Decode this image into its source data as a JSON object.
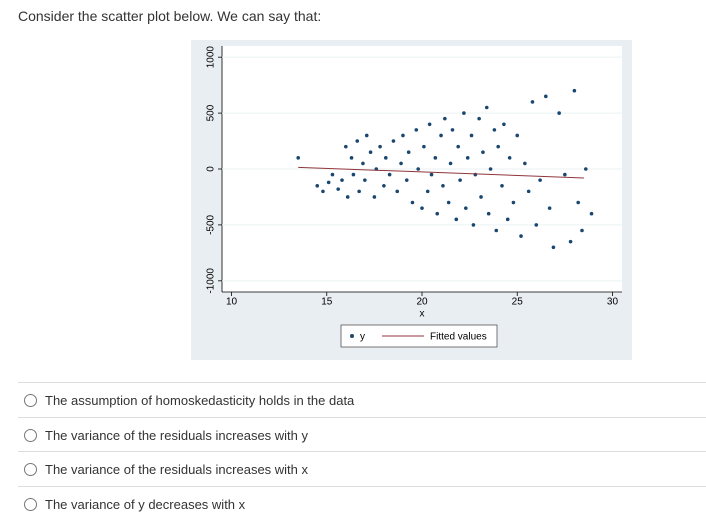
{
  "question": "Consider the scatter plot below. We can say that:",
  "options": [
    "The assumption of homoskedasticity holds in the data",
    "The variance of the residuals increases with y",
    "The variance of the residuals increases with x",
    "The variance of y decreases with x"
  ],
  "chart_data": {
    "type": "scatter",
    "x_label": "x",
    "xlim": [
      9.5,
      30.5
    ],
    "xticks": [
      10,
      15,
      20,
      25,
      30
    ],
    "ylim": [
      -1100,
      1100
    ],
    "yticks": [
      -1000,
      -500,
      0,
      500,
      1000
    ],
    "series": [
      {
        "name": "y",
        "color": "#1a476f",
        "x": [
          13.5,
          14.5,
          14.8,
          15.1,
          15.3,
          15.6,
          15.8,
          16.0,
          16.1,
          16.3,
          16.4,
          16.6,
          16.7,
          16.9,
          17.0,
          17.1,
          17.3,
          17.5,
          17.6,
          17.8,
          18.0,
          18.1,
          18.3,
          18.5,
          18.7,
          18.9,
          19.0,
          19.2,
          19.3,
          19.5,
          19.7,
          19.8,
          20.0,
          20.1,
          20.3,
          20.4,
          20.5,
          20.7,
          20.8,
          21.0,
          21.1,
          21.2,
          21.4,
          21.5,
          21.6,
          21.8,
          21.9,
          22.0,
          22.2,
          22.3,
          22.4,
          22.6,
          22.7,
          22.8,
          23.0,
          23.1,
          23.2,
          23.4,
          23.5,
          23.6,
          23.8,
          23.9,
          24.0,
          24.2,
          24.3,
          24.5,
          24.6,
          24.8,
          25.0,
          25.2,
          25.4,
          25.6,
          25.8,
          26.0,
          26.2,
          26.5,
          26.7,
          26.9,
          27.2,
          27.5,
          27.8,
          28.0,
          28.2,
          28.4,
          28.6,
          28.9
        ],
        "values": [
          100,
          -150,
          -200,
          -120,
          -50,
          -180,
          -100,
          200,
          -250,
          100,
          -50,
          250,
          -200,
          50,
          -100,
          300,
          150,
          -250,
          0,
          200,
          -150,
          100,
          -50,
          250,
          -200,
          50,
          300,
          -100,
          150,
          -300,
          350,
          0,
          -350,
          200,
          -200,
          400,
          -50,
          100,
          -400,
          300,
          -150,
          450,
          -300,
          50,
          350,
          -450,
          200,
          -100,
          500,
          -350,
          100,
          300,
          -500,
          -50,
          450,
          -250,
          150,
          550,
          -400,
          0,
          350,
          -550,
          200,
          -150,
          400,
          -450,
          100,
          -300,
          300,
          -600,
          50,
          -200,
          600,
          -500,
          -100,
          650,
          -350,
          -700,
          500,
          -50,
          -650,
          700,
          -300,
          -550,
          0,
          -400
        ]
      },
      {
        "name": "Fitted values",
        "color": "#90353b",
        "x": [
          13.5,
          28.5
        ],
        "values": [
          15,
          -80
        ]
      }
    ]
  }
}
